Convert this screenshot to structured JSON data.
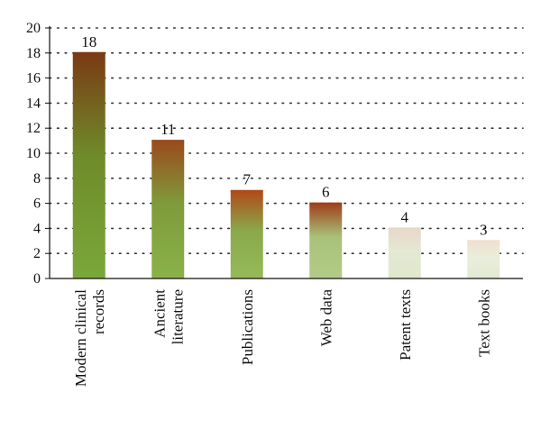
{
  "chart_data": {
    "type": "bar",
    "categories": [
      [
        "Modern clinical",
        "records"
      ],
      [
        "Ancient",
        "literature"
      ],
      [
        "Publications"
      ],
      [
        "Web data"
      ],
      [
        "Patent texts"
      ],
      [
        "Text books"
      ]
    ],
    "values": [
      18,
      11,
      7,
      6,
      4,
      3
    ],
    "ylim": [
      0,
      20
    ],
    "yticks": [
      0,
      2,
      4,
      6,
      8,
      10,
      12,
      14,
      16,
      18,
      20
    ],
    "grid": true,
    "bar_gradients": [
      {
        "top": "#7a3a14",
        "mid": "#6f8a2a",
        "bottom": "#7aa83a"
      },
      {
        "top": "#9a4a1c",
        "mid": "#7f9a3a",
        "bottom": "#8ab24a"
      },
      {
        "top": "#b04a18",
        "mid": "#8aa84a",
        "bottom": "#96ba5a"
      },
      {
        "top": "#a0401a",
        "mid": "#a8c27a",
        "bottom": "#b2cc88"
      },
      {
        "top": "#e8d8c8",
        "mid": "#e4e8d4",
        "bottom": "#dfe8cc"
      },
      {
        "top": "#f0e0d0",
        "mid": "#e9eedc",
        "bottom": "#e2ead2"
      }
    ],
    "axis_color": "#111111",
    "grid_color": "#333333"
  }
}
